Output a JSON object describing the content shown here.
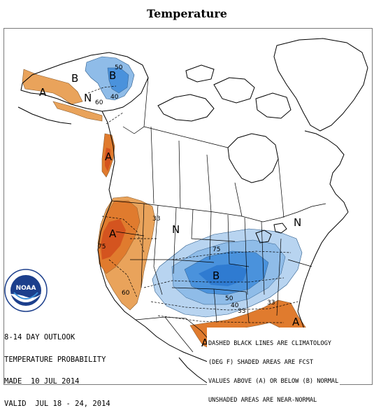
{
  "title": "Temperature",
  "legend_colors": {
    "above": "#e07b2e",
    "above_light": "#e9a35b",
    "above_strong": "#d4541f",
    "below": "#4a92dc",
    "below_light": "#8fbce8",
    "below_strong": "#2f7bd1"
  },
  "map_labels": {
    "A": "A",
    "B": "B",
    "N": "N"
  },
  "probability_labels": {
    "p33": "33",
    "p40": "40",
    "p50": "50",
    "p60": "60",
    "p75": "75"
  },
  "info": {
    "line1": "8-14 DAY OUTLOOK",
    "line2": "TEMPERATURE PROBABILITY",
    "line3": "MADE  10 JUL 2014",
    "line4": "VALID  JUL 18 - 24, 2014"
  },
  "note": {
    "line1": "DASHED BLACK LINES ARE CLIMATOLOGY",
    "line2": "(DEG F) SHADED AREAS ARE FCST",
    "line3": "VALUES ABOVE (A) OR BELOW (B) NORMAL",
    "line4": "UNSHADED AREAS ARE NEAR-NORMAL"
  },
  "logo": {
    "text": "NOAA",
    "icon": "noaa-logo-icon"
  }
}
